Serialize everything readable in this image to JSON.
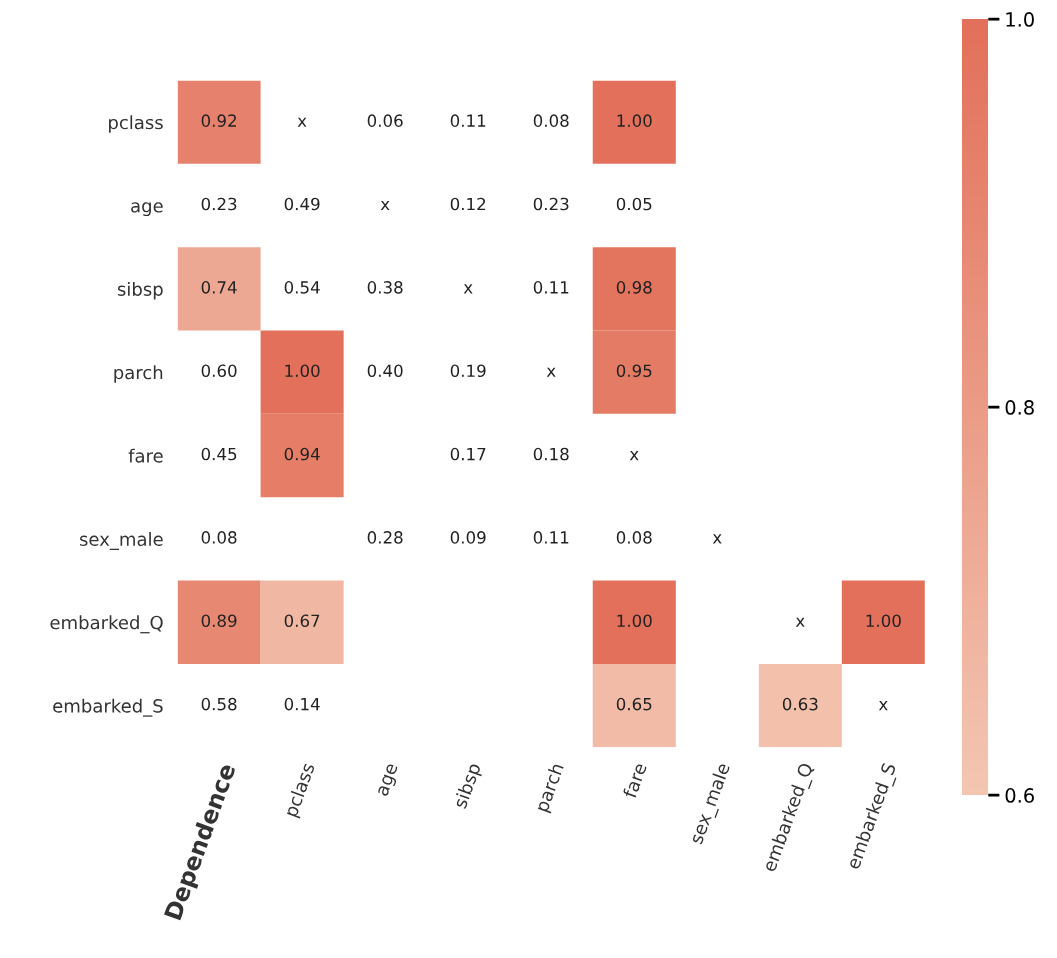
{
  "chart_data": {
    "type": "heatmap",
    "categories": [
      "Dependence",
      "pclass",
      "age",
      "sibsp",
      "parch",
      "fare",
      "sex_male",
      "embarked_Q",
      "embarked_S"
    ],
    "y_categories": [
      "pclass",
      "age",
      "sibsp",
      "parch",
      "fare",
      "sex_male",
      "embarked_Q",
      "embarked_S"
    ],
    "cells": [
      [
        0.92,
        null,
        null,
        null,
        null,
        1.0,
        null,
        null,
        null
      ],
      [
        null,
        null,
        null,
        null,
        null,
        null,
        null,
        null,
        null
      ],
      [
        0.74,
        null,
        null,
        null,
        null,
        0.98,
        null,
        null,
        null
      ],
      [
        null,
        1.0,
        null,
        null,
        null,
        0.95,
        null,
        null,
        null
      ],
      [
        null,
        0.94,
        null,
        null,
        null,
        null,
        null,
        null,
        null
      ],
      [
        null,
        null,
        null,
        null,
        null,
        null,
        null,
        null,
        null
      ],
      [
        0.89,
        0.67,
        null,
        null,
        null,
        1.0,
        null,
        null,
        1.0
      ],
      [
        null,
        null,
        null,
        null,
        null,
        0.65,
        null,
        0.63,
        null
      ]
    ],
    "cell_labels": [
      [
        "0.92",
        "x",
        "0.06",
        "0.11",
        "0.08",
        "1.00",
        null,
        null,
        null
      ],
      [
        "0.23",
        "0.49",
        "x",
        "0.12",
        "0.23",
        "0.05",
        null,
        null,
        null
      ],
      [
        "0.74",
        "0.54",
        "0.38",
        "x",
        "0.11",
        "0.98",
        null,
        null,
        null
      ],
      [
        "0.60",
        "1.00",
        "0.40",
        "0.19",
        "x",
        "0.95",
        null,
        null,
        null
      ],
      [
        "0.45",
        "0.94",
        null,
        "0.17",
        "0.18",
        "x",
        null,
        null,
        null
      ],
      [
        "0.08",
        null,
        "0.28",
        "0.09",
        "0.11",
        "0.08",
        "x",
        null,
        null
      ],
      [
        "0.89",
        "0.67",
        null,
        null,
        null,
        "1.00",
        null,
        "x",
        "1.00"
      ],
      [
        "0.58",
        "0.14",
        null,
        null,
        null,
        "0.65",
        null,
        "0.63",
        "x"
      ]
    ],
    "colors": [
      "#f3c6b2",
      "#e2705a"
    ],
    "clim": [
      0.6,
      1.0
    ],
    "cticks": [
      0.6,
      0.8,
      {
        "value": 1.0,
        "label": "1.0"
      }
    ]
  }
}
